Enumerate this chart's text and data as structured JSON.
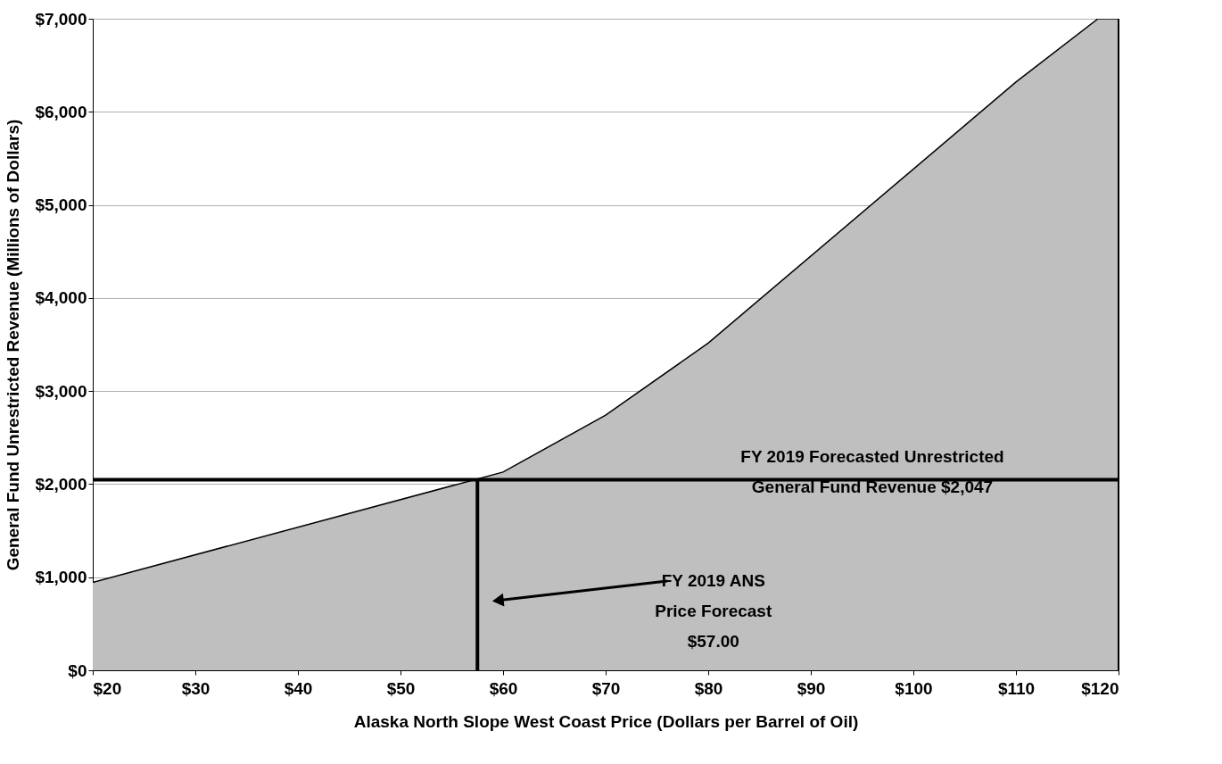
{
  "chart_data": {
    "type": "area",
    "xlabel": "Alaska North Slope West Coast Price (Dollars per Barrel of Oil)",
    "ylabel": "General Fund Unrestricted Revenue (Millions of Dollars)",
    "series": [
      {
        "x": [
          20,
          60,
          70,
          80,
          110,
          118,
          120
        ],
        "values": [
          945,
          2130,
          2741,
          3515,
          6320,
          7000,
          7000
        ],
        "color": "#bfbfbf"
      },
      {
        "type": "line",
        "x": [
          57.5,
          57.5
        ],
        "values": [
          0,
          2047
        ],
        "color": "#000000"
      }
    ],
    "xlim": [
      20,
      120
    ],
    "ylim": [
      0,
      7000
    ],
    "xticks": [
      {
        "value": 20,
        "label": "$20"
      },
      {
        "value": 30,
        "label": "$30"
      },
      {
        "value": 40,
        "label": "$40"
      },
      {
        "value": 50,
        "label": "$50"
      },
      {
        "value": 60,
        "label": "$60"
      },
      {
        "value": 70,
        "label": "$70"
      },
      {
        "value": 80,
        "label": "$80"
      },
      {
        "value": 90,
        "label": "$90"
      },
      {
        "value": 100,
        "label": "$100"
      },
      {
        "value": 110,
        "label": "$110"
      },
      {
        "value": 120,
        "label": "$120"
      }
    ],
    "yticks": [
      {
        "value": 0,
        "label": "$0"
      },
      {
        "value": 1000,
        "label": "$1,000"
      },
      {
        "value": 2000,
        "label": "$2,000"
      },
      {
        "value": 3000,
        "label": "$3,000"
      },
      {
        "value": 4000,
        "label": "$4,000"
      },
      {
        "value": 5000,
        "label": "$5,000"
      },
      {
        "value": 6000,
        "label": "$6,000"
      },
      {
        "value": 7000,
        "label": "$7,000"
      }
    ],
    "grid": "y",
    "ref_lines": [
      {
        "axis": "y",
        "value": 2047,
        "color": "#000000"
      }
    ],
    "annotations": [
      {
        "text": "FY 2019 Forecasted Unrestricted\nGeneral Fund Revenue  $2,047",
        "x": 96,
        "y": 2047
      },
      {
        "text": "FY 2019 ANS\nPrice Forecast\n$57.00",
        "x": 59.5,
        "y": 750
      }
    ]
  }
}
